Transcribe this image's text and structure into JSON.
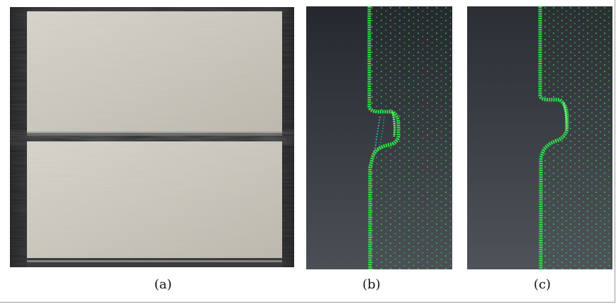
{
  "figure": {
    "panels": [
      {
        "label": "(a)"
      },
      {
        "label": "(b)"
      },
      {
        "label": "(c)"
      }
    ]
  },
  "colors": {
    "photo_background": "#2a2b2e",
    "photo_bar": "#cfccc3",
    "scan_background_top": "#2a2d33",
    "scan_background_bottom": "#4a4e55",
    "point_green": "#2ee63f",
    "point_cyan": "#35d9e0"
  }
}
